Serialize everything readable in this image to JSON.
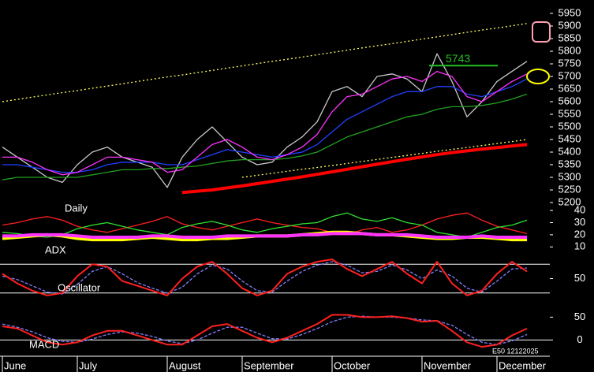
{
  "chart_data": [
    {
      "type": "line",
      "label": "Daily",
      "categories": [
        "June",
        null,
        null,
        null,
        null,
        "July",
        null,
        null,
        null,
        null,
        null,
        "August",
        null,
        null,
        null,
        null,
        "September",
        null,
        null,
        null,
        null,
        null,
        "October",
        null,
        null,
        null,
        null,
        null,
        "November",
        null,
        null,
        null,
        null,
        "December",
        null,
        null
      ],
      "series": [
        {
          "color": "#c8c8c8",
          "values": [
            5420,
            5380,
            5340,
            5300,
            5280,
            5350,
            5400,
            5420,
            5380,
            5360,
            5340,
            5260,
            5380,
            5450,
            5500,
            5440,
            5380,
            5350,
            5360,
            5420,
            5460,
            5520,
            5640,
            5660,
            5620,
            5700,
            5710,
            5690,
            5640,
            5790,
            5680,
            5540,
            5600,
            5680,
            5720,
            5760
          ]
        },
        {
          "color": "#ffff66",
          "style": "dotted",
          "values": [
            5600,
            5609,
            5618,
            5627,
            5636,
            5644,
            5653,
            5662,
            5671,
            5680,
            5689,
            5698,
            5706,
            5715,
            5724,
            5733,
            5742,
            5751,
            5760,
            5768,
            5777,
            5786,
            5795,
            5804,
            5813,
            5822,
            5830,
            5839,
            5848,
            5857,
            5866,
            5875,
            5884,
            5892,
            5901,
            5910
          ]
        },
        {
          "color": "#ffff66",
          "style": "dotted",
          "values": [
            null,
            null,
            null,
            null,
            null,
            null,
            null,
            null,
            null,
            null,
            null,
            null,
            null,
            null,
            null,
            null,
            5300,
            5308,
            5316,
            5324,
            5332,
            5339,
            5347,
            5355,
            5363,
            5371,
            5379,
            5387,
            5395,
            5403,
            5411,
            5418,
            5426,
            5434,
            5442,
            5450
          ]
        },
        {
          "color": "#ff0000",
          "width": 4,
          "values": [
            null,
            null,
            null,
            null,
            null,
            null,
            null,
            null,
            null,
            null,
            null,
            null,
            5240,
            5245,
            5250,
            5258,
            5266,
            5275,
            5284,
            5293,
            5302,
            5312,
            5322,
            5332,
            5342,
            5352,
            5362,
            5372,
            5381,
            5390,
            5398,
            5405,
            5412,
            5418,
            5424,
            5430
          ]
        },
        {
          "color": "#22a022",
          "values": [
            5290,
            5300,
            5300,
            5300,
            5300,
            5300,
            5310,
            5320,
            5330,
            5330,
            5335,
            5335,
            5340,
            5345,
            5355,
            5365,
            5370,
            5370,
            5370,
            5375,
            5385,
            5400,
            5430,
            5460,
            5480,
            5500,
            5520,
            5540,
            5550,
            5570,
            5580,
            5580,
            5585,
            5595,
            5610,
            5630
          ]
        },
        {
          "color": "#2040ff",
          "values": [
            5350,
            5350,
            5340,
            5330,
            5320,
            5320,
            5330,
            5350,
            5360,
            5360,
            5360,
            5350,
            5350,
            5370,
            5390,
            5410,
            5400,
            5390,
            5380,
            5390,
            5400,
            5430,
            5480,
            5530,
            5560,
            5590,
            5620,
            5640,
            5640,
            5660,
            5660,
            5630,
            5620,
            5640,
            5660,
            5690
          ]
        },
        {
          "color": "#ff33ff",
          "values": [
            5380,
            5380,
            5360,
            5330,
            5310,
            5320,
            5350,
            5380,
            5380,
            5370,
            5360,
            5320,
            5330,
            5380,
            5430,
            5450,
            5420,
            5380,
            5370,
            5390,
            5420,
            5470,
            5560,
            5620,
            5630,
            5660,
            5690,
            5700,
            5680,
            5720,
            5700,
            5620,
            5600,
            5640,
            5680,
            5710
          ]
        }
      ],
      "level": {
        "value": 5743,
        "color": "#22c022"
      },
      "ylim": [
        5200,
        5950
      ],
      "yticks": [
        5200,
        5250,
        5300,
        5350,
        5400,
        5450,
        5500,
        5550,
        5600,
        5650,
        5700,
        5750,
        5800,
        5850,
        5900,
        5950
      ]
    },
    {
      "type": "line",
      "label": "ADX",
      "series": [
        {
          "color": "#ff2020",
          "values": [
            28,
            30,
            33,
            35,
            32,
            27,
            24,
            22,
            25,
            28,
            31,
            35,
            29,
            26,
            24,
            27,
            30,
            33,
            30,
            28,
            26,
            25,
            22,
            20,
            24,
            26,
            22,
            24,
            28,
            33,
            36,
            38,
            32,
            27,
            24,
            21
          ]
        },
        {
          "color": "#30e030",
          "values": [
            22,
            21,
            19,
            18,
            20,
            25,
            28,
            30,
            27,
            24,
            22,
            20,
            26,
            29,
            31,
            28,
            24,
            22,
            25,
            27,
            29,
            30,
            35,
            38,
            33,
            31,
            34,
            30,
            28,
            22,
            20,
            18,
            22,
            26,
            28,
            32
          ]
        },
        {
          "color": "#ffff00",
          "width": 4,
          "values": [
            17,
            18,
            19,
            20,
            19,
            17,
            16,
            16,
            16,
            17,
            18,
            17,
            16,
            16,
            17,
            17,
            18,
            19,
            19,
            19,
            20,
            21,
            22,
            22,
            21,
            20,
            20,
            19,
            18,
            17,
            17,
            18,
            18,
            17,
            16,
            16
          ]
        },
        {
          "color": "#ff33ff",
          "width": 4,
          "values": [
            19,
            19,
            20,
            20,
            20,
            19,
            18,
            18,
            18,
            18,
            19,
            19,
            18,
            18,
            18,
            19,
            19,
            19,
            19,
            19,
            20,
            20,
            21,
            21,
            21,
            20,
            20,
            20,
            19,
            18,
            18,
            18,
            19,
            18,
            18,
            18
          ]
        }
      ],
      "ylim": [
        5,
        42
      ],
      "yticks": [
        10,
        20,
        30,
        40
      ]
    },
    {
      "type": "line",
      "label": "Oscillator",
      "series": [
        {
          "color": "#8080ff",
          "style": "dashed",
          "values": [
            55,
            48,
            35,
            22,
            18,
            38,
            65,
            75,
            60,
            42,
            30,
            20,
            32,
            60,
            78,
            70,
            45,
            25,
            22,
            45,
            65,
            78,
            85,
            78,
            62,
            65,
            78,
            68,
            50,
            68,
            55,
            30,
            22,
            45,
            70,
            72
          ]
        },
        {
          "color": "#ff2020",
          "width": 2,
          "values": [
            60,
            40,
            25,
            15,
            20,
            55,
            80,
            75,
            45,
            35,
            25,
            15,
            50,
            75,
            85,
            60,
            30,
            15,
            25,
            60,
            75,
            85,
            90,
            70,
            55,
            70,
            85,
            60,
            40,
            85,
            40,
            15,
            25,
            60,
            85,
            65
          ]
        }
      ],
      "levels": [
        20,
        80
      ],
      "ylim": [
        0,
        100
      ],
      "yticks": [
        50
      ]
    },
    {
      "type": "line",
      "label": "MACD",
      "series": [
        {
          "color": "#8080ff",
          "style": "dashed",
          "values": [
            35,
            28,
            18,
            5,
            -3,
            -5,
            2,
            12,
            18,
            15,
            8,
            -2,
            -8,
            0,
            15,
            28,
            28,
            15,
            3,
            2,
            12,
            25,
            40,
            50,
            52,
            50,
            50,
            48,
            44,
            42,
            32,
            12,
            -5,
            -10,
            -2,
            12
          ]
        },
        {
          "color": "#ff2020",
          "width": 2,
          "values": [
            30,
            25,
            10,
            -5,
            -10,
            -5,
            10,
            20,
            20,
            10,
            0,
            -10,
            -10,
            10,
            30,
            35,
            20,
            5,
            -5,
            5,
            20,
            35,
            55,
            55,
            50,
            50,
            52,
            48,
            40,
            42,
            20,
            -5,
            -15,
            -10,
            10,
            25
          ]
        }
      ],
      "levels": [
        0
      ],
      "ylim": [
        -20,
        80
      ],
      "yticks": [
        0,
        50
      ]
    }
  ],
  "footer": "E50 12122025"
}
